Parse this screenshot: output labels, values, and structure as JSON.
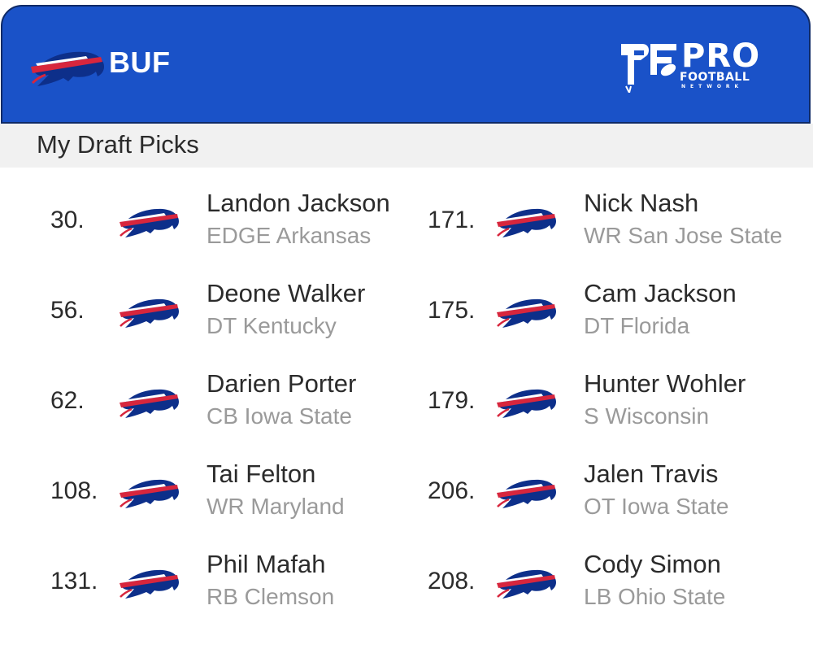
{
  "header": {
    "team_abbr": "BUF",
    "brand_pro": "PRO",
    "brand_football": "FOOTBALL",
    "brand_network": "NETWORK",
    "bg_color": "#1a52c8",
    "logo_icon": "bills-buffalo-icon",
    "brand_icon": "pfn-logo-icon"
  },
  "section": {
    "title": "My Draft Picks"
  },
  "colors": {
    "bills_blue": "#1a3fa8",
    "bills_red": "#d7263d",
    "detail_gray": "#9a9a9a"
  },
  "picks": [
    {
      "number": "30.",
      "name": "Landon Jackson",
      "detail": "EDGE Arkansas"
    },
    {
      "number": "56.",
      "name": "Deone Walker",
      "detail": "DT Kentucky"
    },
    {
      "number": "62.",
      "name": "Darien Porter",
      "detail": "CB Iowa State"
    },
    {
      "number": "108.",
      "name": "Tai Felton",
      "detail": "WR Maryland"
    },
    {
      "number": "131.",
      "name": "Phil Mafah",
      "detail": "RB Clemson"
    },
    {
      "number": "171.",
      "name": "Nick Nash",
      "detail": "WR San Jose State"
    },
    {
      "number": "175.",
      "name": "Cam Jackson",
      "detail": "DT Florida"
    },
    {
      "number": "179.",
      "name": "Hunter Wohler",
      "detail": "S Wisconsin"
    },
    {
      "number": "206.",
      "name": "Jalen Travis",
      "detail": "OT Iowa State"
    },
    {
      "number": "208.",
      "name": "Cody Simon",
      "detail": "LB Ohio State"
    }
  ]
}
